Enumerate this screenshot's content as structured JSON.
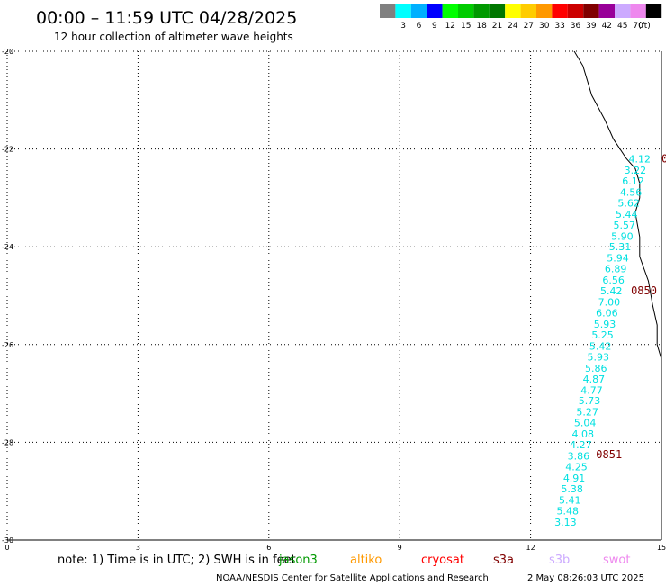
{
  "header": {
    "title": "00:00 – 11:59 UTC 04/28/2025",
    "subtitle": "12 hour collection of altimeter wave heights"
  },
  "legend": {
    "swatches": [
      {
        "label": "",
        "color": "#808080"
      },
      {
        "label": "3",
        "color": "#00ffff"
      },
      {
        "label": "6",
        "color": "#00b0ff"
      },
      {
        "label": "9",
        "color": "#0000ff"
      },
      {
        "label": "12",
        "color": "#00ff00"
      },
      {
        "label": "15",
        "color": "#00cc00"
      },
      {
        "label": "18",
        "color": "#009900"
      },
      {
        "label": "21",
        "color": "#007700"
      },
      {
        "label": "24",
        "color": "#ffff00"
      },
      {
        "label": "27",
        "color": "#ffcc00"
      },
      {
        "label": "30",
        "color": "#ff9900"
      },
      {
        "label": "33",
        "color": "#ff0000"
      },
      {
        "label": "36",
        "color": "#cc0000"
      },
      {
        "label": "39",
        "color": "#800000"
      },
      {
        "label": "42",
        "color": "#990099"
      },
      {
        "label": "45",
        "color": "#ccaaff"
      },
      {
        "label": "70",
        "color": "#ee88ee"
      },
      {
        "label": "",
        "color": "#000000"
      }
    ],
    "unit": "(ft)"
  },
  "map": {
    "lon_range": [
      0,
      15
    ],
    "lat_range": [
      -30,
      -20
    ],
    "x_ticks": [
      0,
      3,
      6,
      9,
      12,
      15
    ],
    "y_ticks": [
      -20,
      -22,
      -24,
      -26,
      -28,
      -30
    ],
    "x_tick_labels": [
      "0",
      "3",
      "6",
      "9",
      "12",
      "15"
    ],
    "y_tick_labels": [
      "-20",
      "-22",
      "-24",
      "-26",
      "-28",
      "-30"
    ],
    "grid": true,
    "grid_color": "#000000",
    "coast_color": "#000000",
    "coastline": [
      [
        13.0,
        -20.0
      ],
      [
        13.2,
        -20.3
      ],
      [
        13.4,
        -20.9
      ],
      [
        13.7,
        -21.4
      ],
      [
        13.9,
        -21.8
      ],
      [
        14.2,
        -22.2
      ],
      [
        14.4,
        -22.4
      ],
      [
        14.5,
        -22.7
      ],
      [
        14.5,
        -23.0
      ],
      [
        14.4,
        -23.3
      ],
      [
        14.5,
        -23.8
      ],
      [
        14.5,
        -24.2
      ],
      [
        14.7,
        -24.7
      ],
      [
        14.8,
        -25.2
      ],
      [
        14.9,
        -25.6
      ],
      [
        14.9,
        -26.0
      ],
      [
        15.0,
        -26.3
      ],
      [
        15.0,
        -26.6
      ]
    ],
    "wave_color": "#00e0e0",
    "wave_heights": [
      {
        "lat": -22.2,
        "lon": 14.5,
        "value": "4.12"
      },
      {
        "lat": -22.43,
        "lon": 14.4,
        "value": "3.22"
      },
      {
        "lat": -22.65,
        "lon": 14.35,
        "value": "6.12"
      },
      {
        "lat": -22.88,
        "lon": 14.3,
        "value": "4.56"
      },
      {
        "lat": -23.1,
        "lon": 14.25,
        "value": "5.62"
      },
      {
        "lat": -23.33,
        "lon": 14.2,
        "value": "5.44"
      },
      {
        "lat": -23.55,
        "lon": 14.15,
        "value": "5.57"
      },
      {
        "lat": -23.78,
        "lon": 14.1,
        "value": "5.90"
      },
      {
        "lat": -24.0,
        "lon": 14.05,
        "value": "5.31"
      },
      {
        "lat": -24.23,
        "lon": 14.0,
        "value": "5.94"
      },
      {
        "lat": -24.45,
        "lon": 13.95,
        "value": "6.89"
      },
      {
        "lat": -24.68,
        "lon": 13.9,
        "value": "6.56"
      },
      {
        "lat": -24.9,
        "lon": 13.85,
        "value": "5.42"
      },
      {
        "lat": -25.13,
        "lon": 13.8,
        "value": "7.00"
      },
      {
        "lat": -25.35,
        "lon": 13.75,
        "value": "6.06"
      },
      {
        "lat": -25.58,
        "lon": 13.7,
        "value": "5.93"
      },
      {
        "lat": -25.8,
        "lon": 13.65,
        "value": "5.25"
      },
      {
        "lat": -26.03,
        "lon": 13.6,
        "value": "5.42"
      },
      {
        "lat": -26.25,
        "lon": 13.55,
        "value": "5.93"
      },
      {
        "lat": -26.48,
        "lon": 13.5,
        "value": "5.86"
      },
      {
        "lat": -26.7,
        "lon": 13.45,
        "value": "4.87"
      },
      {
        "lat": -26.93,
        "lon": 13.4,
        "value": "4.77"
      },
      {
        "lat": -27.15,
        "lon": 13.35,
        "value": "5.73"
      },
      {
        "lat": -27.38,
        "lon": 13.3,
        "value": "5.27"
      },
      {
        "lat": -27.6,
        "lon": 13.25,
        "value": "5.04"
      },
      {
        "lat": -27.83,
        "lon": 13.2,
        "value": "4.08"
      },
      {
        "lat": -28.05,
        "lon": 13.15,
        "value": "4.27"
      },
      {
        "lat": -28.28,
        "lon": 13.1,
        "value": "3.86"
      },
      {
        "lat": -28.5,
        "lon": 13.05,
        "value": "4.25"
      },
      {
        "lat": -28.73,
        "lon": 13.0,
        "value": "4.91"
      },
      {
        "lat": -28.95,
        "lon": 12.95,
        "value": "5.38"
      },
      {
        "lat": -29.18,
        "lon": 12.9,
        "value": "5.41"
      },
      {
        "lat": -29.4,
        "lon": 12.85,
        "value": "5.48"
      },
      {
        "lat": -29.63,
        "lon": 12.8,
        "value": "3.13"
      }
    ],
    "time_color": "#800000",
    "time_labels": [
      {
        "lat": -22.2,
        "lon": 15.0,
        "value": "0"
      },
      {
        "lat": -24.9,
        "lon": 14.3,
        "value": "0850"
      },
      {
        "lat": -28.25,
        "lon": 13.5,
        "value": "0851"
      }
    ]
  },
  "footer": {
    "note": "note: 1) Time is in UTC; 2) SWH is in feet",
    "satellites": [
      {
        "name": "jason3",
        "color": "#009900"
      },
      {
        "name": "altiko",
        "color": "#ff9900"
      },
      {
        "name": "cryosat",
        "color": "#ff0000"
      },
      {
        "name": "s3a",
        "color": "#800000"
      },
      {
        "name": "s3b",
        "color": "#ccaaff"
      },
      {
        "name": "swot",
        "color": "#ee88ee"
      }
    ],
    "credit": "NOAA/NESDIS Center for Satellite Applications and Research",
    "timestamp": "2 May 08:26:03 UTC 2025"
  }
}
